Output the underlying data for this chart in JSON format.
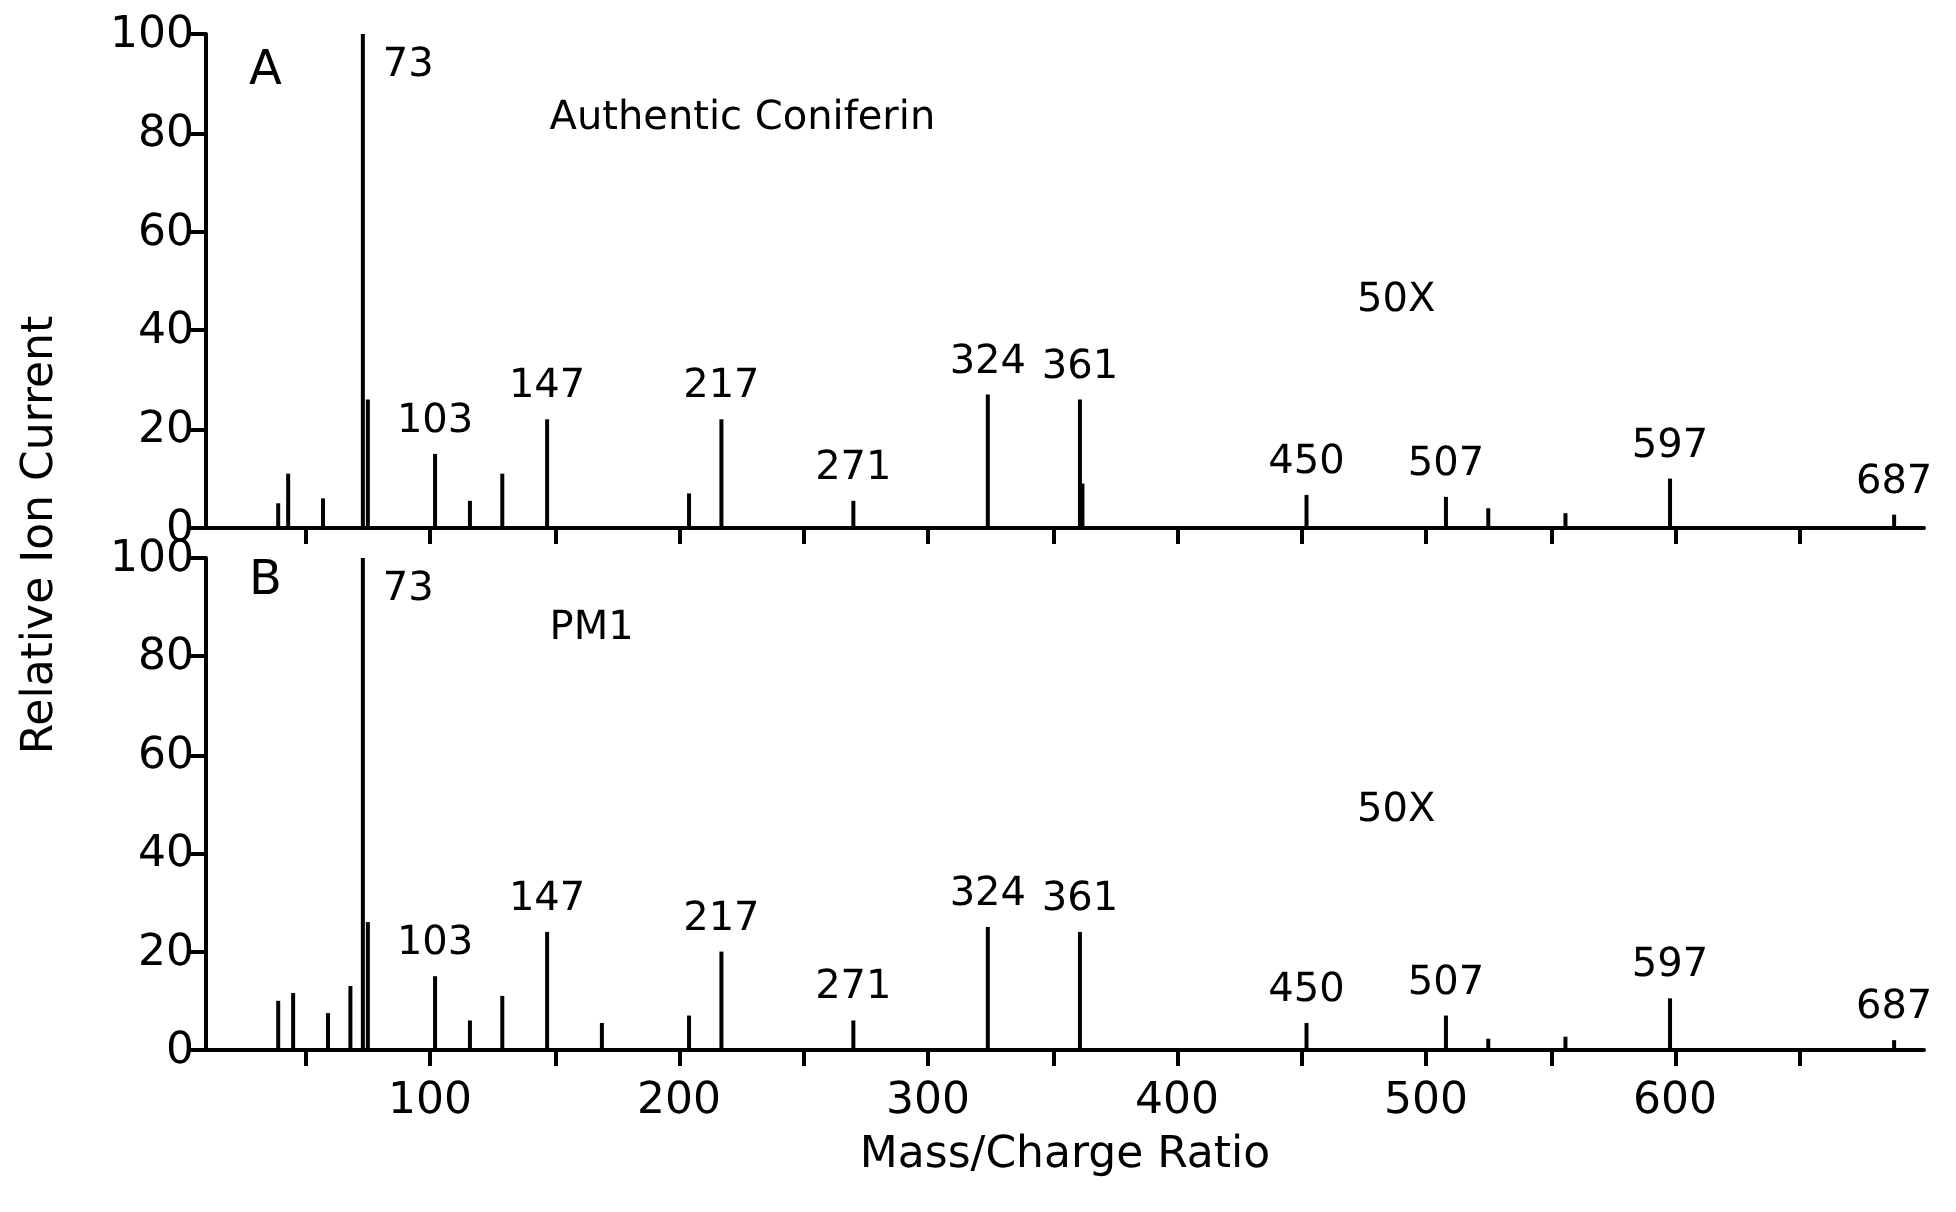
{
  "chart_data": [
    {
      "type": "bar",
      "ylabel": "Relative Ion Current",
      "color": "#000000",
      "x": [
        39,
        43,
        57,
        73,
        75,
        102,
        116,
        129,
        147,
        204,
        217,
        270,
        324,
        361,
        362,
        452,
        508,
        525,
        556,
        598,
        688
      ],
      "values": [
        5,
        11,
        6,
        100,
        26,
        15,
        5.5,
        11,
        22,
        7,
        22,
        5.5,
        27,
        26,
        9,
        6.7,
        6.3,
        4,
        3,
        10,
        2.7
      ],
      "xlim": [
        10,
        700
      ],
      "ylim": [
        0,
        100
      ],
      "yticks": [
        0,
        20,
        40,
        60,
        80,
        100
      ],
      "xticks": [
        {
          "value": 50,
          "label": null
        },
        100,
        {
          "value": 150,
          "label": null
        },
        200,
        {
          "value": 250,
          "label": null
        },
        300,
        {
          "value": 350,
          "label": null
        },
        400,
        {
          "value": 450,
          "label": null
        },
        500,
        {
          "value": 550,
          "label": null
        },
        600,
        {
          "value": 650,
          "label": null
        }
      ],
      "tick_labels": "y",
      "annotations": [
        "A",
        "Authentic Coniferin",
        "50X",
        {
          "text": "73",
          "x": 73,
          "y": 100
        },
        {
          "text": "103",
          "x": 102,
          "y": 15
        },
        {
          "text": "147",
          "x": 147,
          "y": 22
        },
        {
          "text": "217",
          "x": 217,
          "y": 22
        },
        {
          "text": "271",
          "x": 270,
          "y": 5.5
        },
        {
          "text": "324",
          "x": 324,
          "y": 27
        },
        {
          "text": "361",
          "x": 361,
          "y": 26
        },
        {
          "text": "450",
          "x": 452,
          "y": 6.7
        },
        {
          "text": "507",
          "x": 508,
          "y": 6.3
        },
        {
          "text": "597",
          "x": 598,
          "y": 10
        },
        {
          "text": "687",
          "x": 688,
          "y": 2.7
        }
      ]
    },
    {
      "type": "bar",
      "xlabel": "Mass/Charge Ratio",
      "color": "#000000",
      "x": [
        39,
        45,
        59,
        68,
        73,
        75,
        102,
        116,
        129,
        147,
        169,
        204,
        217,
        270,
        324,
        361,
        452,
        508,
        525,
        556,
        598,
        688
      ],
      "values": [
        10,
        11.6,
        7.5,
        13,
        100,
        26,
        15,
        6,
        11,
        24,
        5.5,
        7,
        20,
        6,
        25,
        24,
        5.5,
        7,
        2.3,
        2.7,
        10.5,
        2
      ],
      "xlim": [
        10,
        700
      ],
      "ylim": [
        0,
        100
      ],
      "yticks": [
        0,
        20,
        40,
        60,
        80,
        100
      ],
      "xticks": [
        {
          "value": 50,
          "label": null
        },
        100,
        {
          "value": 150,
          "label": null
        },
        200,
        {
          "value": 250,
          "label": null
        },
        300,
        {
          "value": 350,
          "label": null
        },
        400,
        {
          "value": 450,
          "label": null
        },
        500,
        {
          "value": 550,
          "label": null
        },
        600,
        {
          "value": 650,
          "label": null
        }
      ],
      "annotations": [
        "B",
        "PM1",
        "50X",
        {
          "text": "73",
          "x": 73,
          "y": 100
        },
        {
          "text": "103",
          "x": 102,
          "y": 15
        },
        {
          "text": "147",
          "x": 147,
          "y": 24
        },
        {
          "text": "217",
          "x": 217,
          "y": 20
        },
        {
          "text": "271",
          "x": 270,
          "y": 6
        },
        {
          "text": "324",
          "x": 324,
          "y": 25
        },
        {
          "text": "361",
          "x": 361,
          "y": 24
        },
        {
          "text": "450",
          "x": 452,
          "y": 5.5
        },
        {
          "text": "507",
          "x": 508,
          "y": 7
        },
        {
          "text": "597",
          "x": 598,
          "y": 10.5
        },
        {
          "text": "687",
          "x": 688,
          "y": 2
        }
      ]
    }
  ]
}
